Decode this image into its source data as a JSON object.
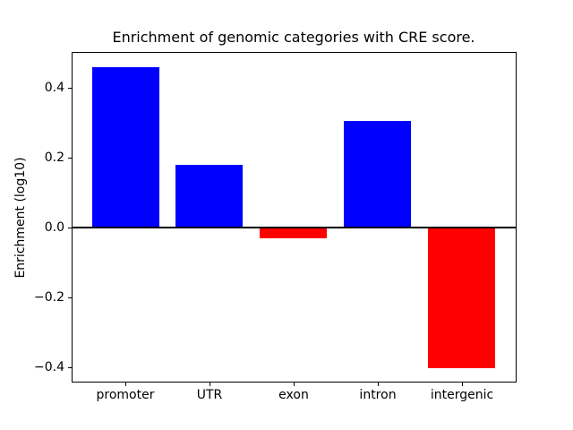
{
  "figure": {
    "background": "#ffffff"
  },
  "chart_data": {
    "type": "bar",
    "title": "Enrichment of genomic categories with CRE score.",
    "ylabel": "Enrichment (log10)",
    "xlabel": "",
    "categories": [
      "promoter",
      "UTR",
      "exon",
      "intron",
      "intergenic"
    ],
    "values": [
      0.46,
      0.18,
      -0.03,
      0.305,
      -0.403
    ],
    "bar_colors": [
      "#0000ff",
      "#0000ff",
      "#ff0000",
      "#0000ff",
      "#ff0000"
    ],
    "positive_color": "#0000ff",
    "negative_color": "#ff0000",
    "axis_color": "#000000",
    "ylim": [
      -0.441,
      0.503
    ],
    "xlim": [
      -0.64,
      4.64
    ],
    "bar_width": 0.8,
    "yticks": [
      {
        "value": 0.4,
        "label": "0.4"
      },
      {
        "value": 0.2,
        "label": "0.2"
      },
      {
        "value": 0.0,
        "label": "0.0"
      },
      {
        "value": -0.2,
        "label": "−0.2"
      },
      {
        "value": -0.4,
        "label": "−0.4"
      }
    ],
    "zero_line": true,
    "grid": false,
    "legend": null
  }
}
